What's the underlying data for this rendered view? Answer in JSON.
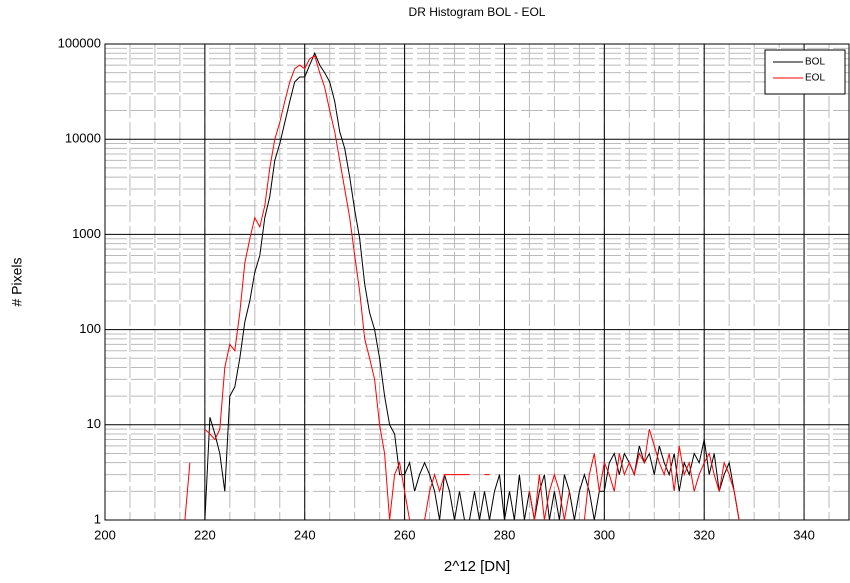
{
  "chart_data": {
    "type": "line",
    "title": "DR  Histogram BOL - EOL",
    "x_label": "2^12 [DN]",
    "y_label": "# Pixels",
    "x": [
      216,
      217,
      218,
      219,
      220,
      221,
      222,
      223,
      224,
      225,
      226,
      227,
      228,
      229,
      230,
      231,
      232,
      233,
      234,
      235,
      236,
      237,
      238,
      239,
      240,
      241,
      242,
      243,
      244,
      245,
      246,
      247,
      248,
      249,
      250,
      251,
      252,
      253,
      254,
      255,
      256,
      257,
      258,
      259,
      260,
      261,
      262,
      263,
      264,
      265,
      266,
      267,
      268,
      269,
      270,
      271,
      272,
      273,
      274,
      275,
      276,
      277,
      278,
      279,
      280,
      281,
      282,
      283,
      284,
      285,
      286,
      287,
      288,
      289,
      290,
      291,
      292,
      293,
      294,
      295,
      296,
      297,
      298,
      299,
      300,
      301,
      302,
      303,
      304,
      305,
      306,
      307,
      308,
      309,
      310,
      311,
      312,
      313,
      314,
      315,
      316,
      317,
      318,
      319,
      320,
      321,
      322,
      323,
      324,
      325,
      326,
      327
    ],
    "series": [
      {
        "name": "BOL",
        "color": "#000000",
        "values": [
          null,
          null,
          null,
          null,
          1,
          12,
          8,
          5,
          2,
          20,
          25,
          50,
          120,
          200,
          400,
          600,
          1500,
          2500,
          6000,
          9000,
          15000,
          25000,
          40000,
          45000,
          45000,
          60000,
          80000,
          60000,
          50000,
          40000,
          25000,
          12000,
          8000,
          4000,
          1800,
          900,
          300,
          150,
          100,
          50,
          20,
          10,
          8,
          3,
          3,
          4,
          2,
          3,
          4,
          3,
          2,
          1,
          3,
          2,
          1,
          2,
          1,
          1,
          2,
          1,
          2,
          1,
          2,
          3,
          1,
          2,
          1,
          3,
          1,
          2,
          1,
          2,
          3,
          1,
          2,
          1,
          3,
          2,
          1,
          2,
          3,
          2,
          1,
          2,
          2,
          4,
          5,
          3,
          5,
          4,
          3,
          6,
          4,
          5,
          3,
          6,
          4,
          3,
          5,
          2,
          4,
          3,
          5,
          4,
          7,
          3,
          5,
          2,
          3,
          4,
          2,
          1
        ]
      },
      {
        "name": "EOL",
        "color": "#ff0000",
        "values": [
          1,
          4,
          null,
          null,
          9,
          8,
          7,
          9,
          40,
          70,
          60,
          150,
          500,
          900,
          1500,
          1200,
          2000,
          5000,
          10000,
          15000,
          25000,
          40000,
          55000,
          60000,
          55000,
          70000,
          75000,
          50000,
          35000,
          20000,
          12000,
          6000,
          3000,
          1500,
          600,
          250,
          80,
          50,
          30,
          10,
          5,
          1,
          3,
          4,
          2,
          1,
          null,
          null,
          1,
          2,
          3,
          2,
          3,
          3,
          3,
          3,
          3,
          3,
          null,
          null,
          3,
          3,
          null,
          null,
          null,
          null,
          null,
          null,
          null,
          2,
          1,
          3,
          1,
          2,
          3,
          2,
          1,
          2,
          null,
          null,
          1,
          3,
          5,
          2,
          4,
          3,
          2,
          5,
          3,
          4,
          3,
          5,
          4,
          9,
          6,
          4,
          3,
          5,
          2,
          6,
          3,
          4,
          2,
          3,
          4,
          5,
          3,
          2,
          4,
          3,
          2,
          1
        ]
      }
    ],
    "xlim": [
      200,
      349
    ],
    "xticks": [
      200,
      220,
      240,
      260,
      280,
      300,
      320,
      340
    ],
    "ylim": [
      1,
      100000
    ],
    "yticks": [
      1,
      10,
      100,
      1000,
      10000,
      100000
    ],
    "log_y": true,
    "grid": true,
    "legend": "upper right"
  }
}
